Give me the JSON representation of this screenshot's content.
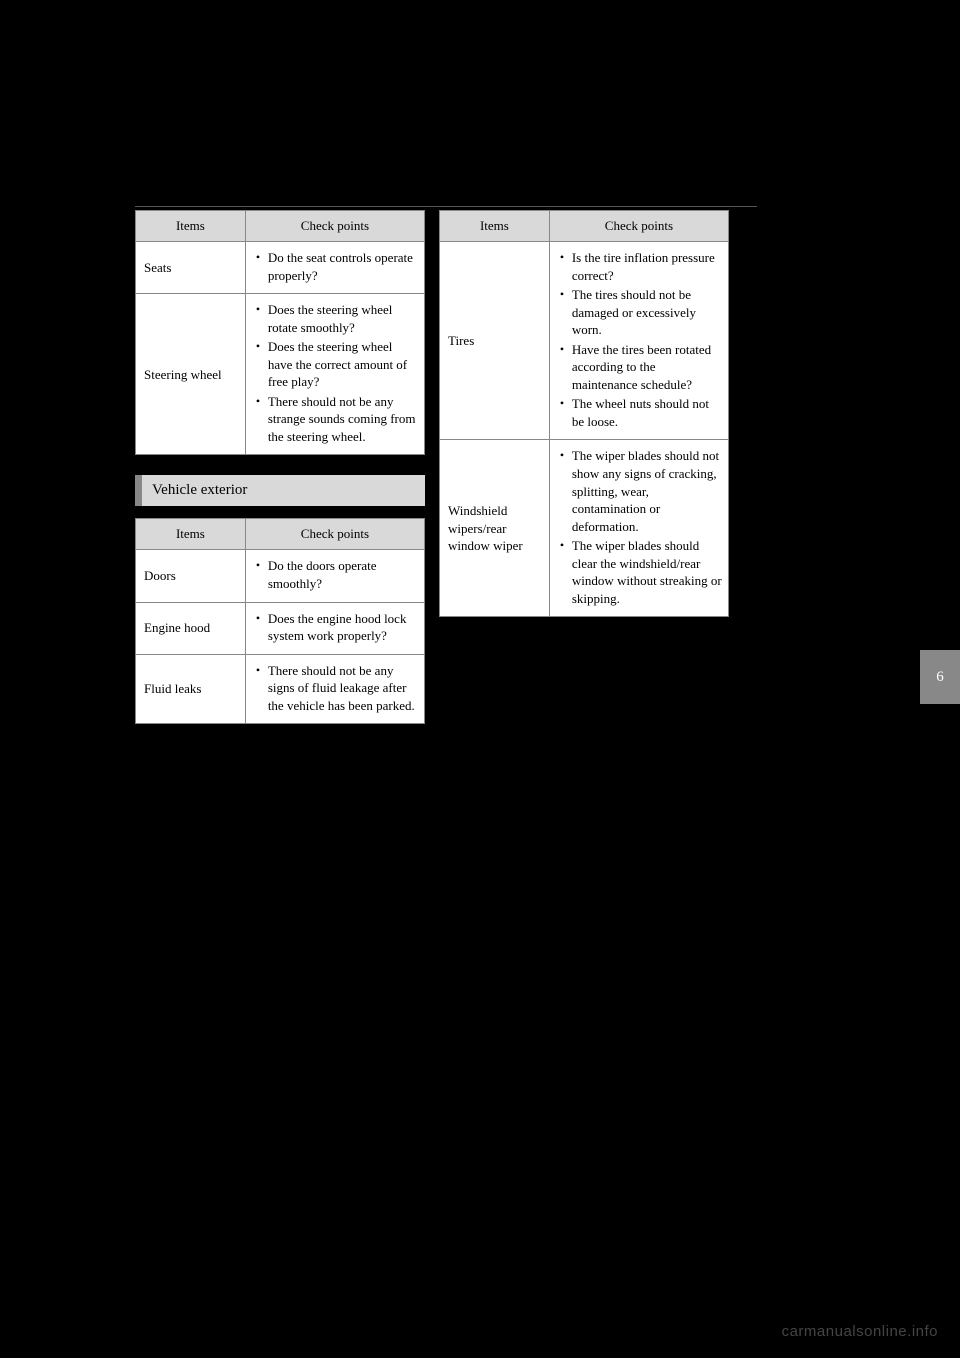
{
  "side_tab": "6",
  "watermark": "carmanualsonline.info",
  "col1": {
    "table1": {
      "header_items": "Items",
      "header_points": "Check points",
      "rows": [
        {
          "item": "Seats",
          "points": [
            "Do the seat controls operate properly?"
          ]
        },
        {
          "item": "Steering wheel",
          "points": [
            "Does the steering wheel rotate smoothly?",
            "Does the steering wheel have the correct amount of free play?",
            "There should not be any strange sounds coming from the steering wheel."
          ]
        }
      ]
    },
    "section_header": "Vehicle exterior",
    "table2": {
      "header_items": "Items",
      "header_points": "Check points",
      "rows": [
        {
          "item": "Doors",
          "points": [
            "Do the doors operate smoothly?"
          ]
        },
        {
          "item": "Engine hood",
          "points": [
            "Does the engine hood lock system work properly?"
          ]
        },
        {
          "item": "Fluid leaks",
          "points": [
            "There should not be any signs of fluid leakage after the vehicle has been parked."
          ]
        }
      ]
    }
  },
  "col2": {
    "table1": {
      "header_items": "Items",
      "header_points": "Check points",
      "rows": [
        {
          "item": "Tires",
          "points": [
            "Is the tire inflation pressure correct?",
            "The tires should not be damaged or excessively worn.",
            "Have the tires been rotated according to the maintenance schedule?",
            "The wheel nuts should not be loose."
          ]
        },
        {
          "item": "Windshield wipers/rear window wiper",
          "points": [
            "The wiper blades should not show any signs of cracking, splitting, wear, contamination or deformation.",
            "The wiper blades should clear the windshield/rear window without streaking or skipping."
          ]
        }
      ]
    }
  }
}
